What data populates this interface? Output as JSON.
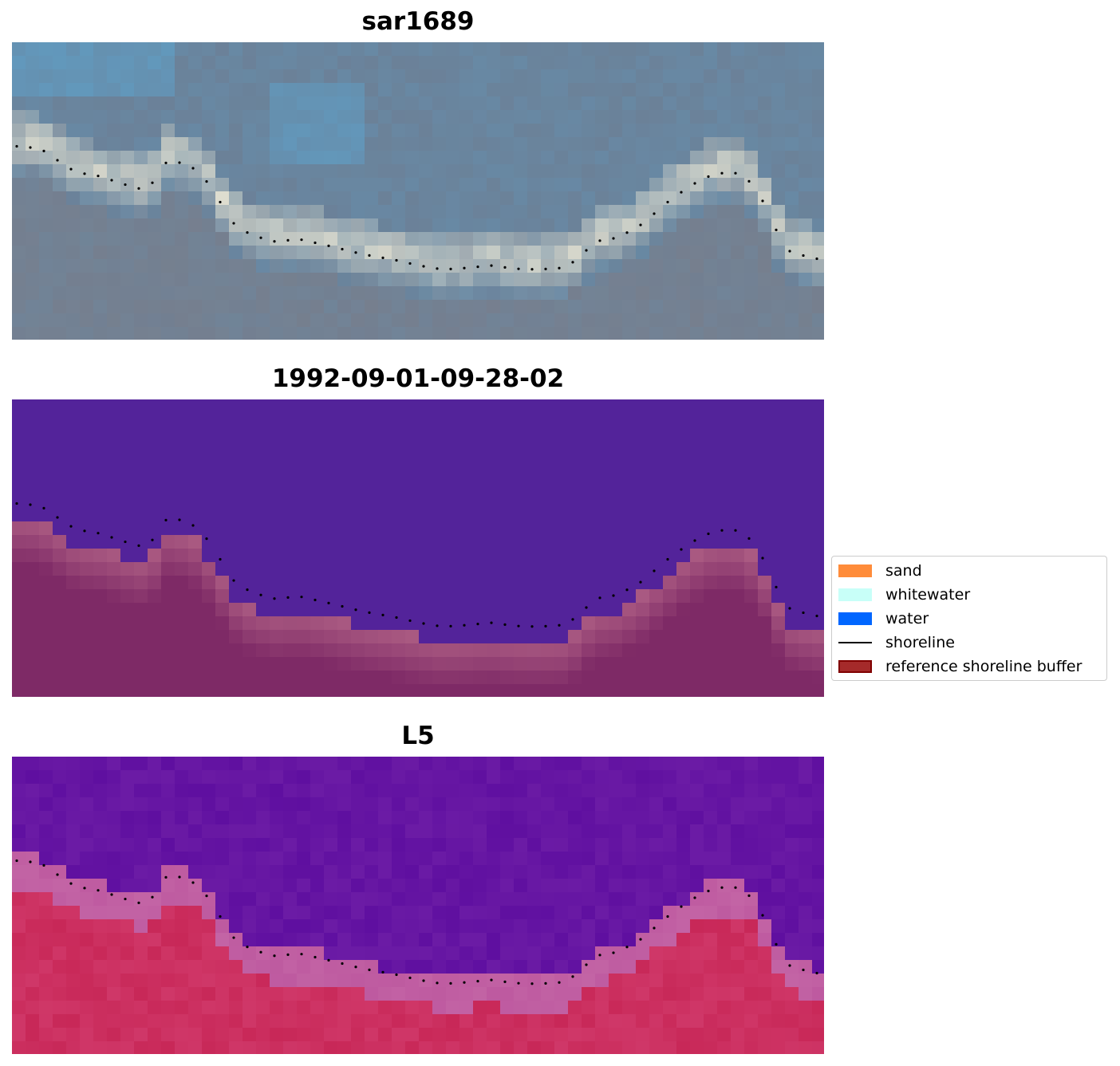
{
  "panels": [
    {
      "title": "sar1689",
      "kind": "rgb"
    },
    {
      "title": "1992-09-01-09-28-02",
      "kind": "classification"
    },
    {
      "title": "L5",
      "kind": "index"
    }
  ],
  "legend": {
    "items": [
      {
        "label": "sand",
        "type": "patch",
        "color": "#ff8c3a"
      },
      {
        "label": "whitewater",
        "type": "patch",
        "color": "#c8fff8"
      },
      {
        "label": "water",
        "type": "patch",
        "color": "#0066ff"
      },
      {
        "label": "shoreline",
        "type": "line",
        "color": "#000000"
      },
      {
        "label": "reference shoreline buffer",
        "type": "patch",
        "color": "#a52a2a",
        "edge": "#800000"
      }
    ]
  },
  "colors": {
    "classification_water": "#53239a",
    "classification_buffer": "#7e2a66",
    "index_water": "#5f0fa0",
    "index_land": "#c82858",
    "rgb_sky": "#6b8198",
    "rgb_surf": "#e6e3d2",
    "shoreline_dots": "#000000"
  }
}
